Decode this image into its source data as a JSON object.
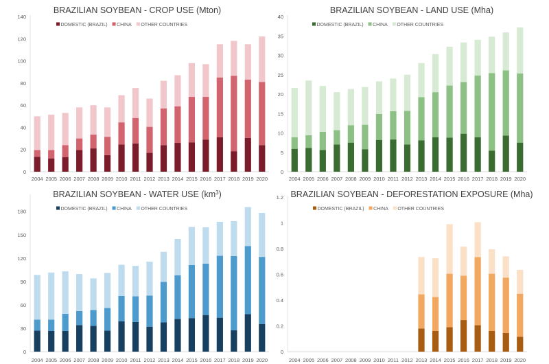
{
  "chart_data": [
    {
      "id": "crop",
      "type": "bar",
      "stacked": true,
      "title": "BRAZILIAN SOYBEAN - CROP USE (Mton)",
      "xlabel": "",
      "ylabel": "",
      "ylim": [
        0,
        140
      ],
      "yticks": [
        0,
        20,
        40,
        60,
        80,
        100,
        120,
        140
      ],
      "ytick_labels": [
        "0",
        "20",
        "40",
        "60",
        "80",
        "100",
        "120",
        "140"
      ],
      "grid": false,
      "legend_position": "top-center",
      "categories": [
        "2004",
        "2005",
        "2006",
        "2007",
        "2008",
        "2009",
        "2010",
        "2011",
        "2012",
        "2013",
        "2014",
        "2015",
        "2016",
        "2017",
        "2018",
        "2019",
        "2020"
      ],
      "series": [
        {
          "name": "DOMESTIC (BRAZIL)",
          "color": "#7B1C2A",
          "values": [
            13.5,
            12,
            13,
            19.5,
            21,
            15,
            24.5,
            25.5,
            17,
            24,
            26,
            26.5,
            29,
            31,
            18.5,
            30.5,
            24
          ]
        },
        {
          "name": "CHINA",
          "color": "#D1646F",
          "values": [
            6,
            7.5,
            11,
            10.5,
            12.5,
            16.5,
            20,
            23,
            23.5,
            33,
            33,
            41,
            38.5,
            54,
            68,
            52.5,
            57
          ]
        },
        {
          "name": "OTHER COUNTRIES",
          "color": "#F1C7CC",
          "values": [
            30.5,
            32,
            29,
            28,
            26.5,
            26.5,
            24.5,
            27,
            25.5,
            25,
            28,
            30.5,
            29.5,
            30,
            31.5,
            32,
            41
          ]
        }
      ]
    },
    {
      "id": "land",
      "type": "bar",
      "stacked": true,
      "title": "BRAZILIAN SOYBEAN - LAND USE (Mha)",
      "xlabel": "",
      "ylabel": "",
      "ylim": [
        0,
        40
      ],
      "yticks": [
        0,
        5,
        10,
        15,
        20,
        25,
        30,
        35,
        40
      ],
      "ytick_labels": [
        "0",
        "5",
        "10",
        "15",
        "20",
        "25",
        "30",
        "35",
        "40"
      ],
      "grid": false,
      "legend_position": "top-center",
      "categories": [
        "2004",
        "2005",
        "2006",
        "2007",
        "2008",
        "2009",
        "2010",
        "2011",
        "2012",
        "2013",
        "2014",
        "2015",
        "2016",
        "2017",
        "2018",
        "2019",
        "2020"
      ],
      "series": [
        {
          "name": "DOMESTIC (BRAZIL)",
          "color": "#3A6B30",
          "values": [
            5.9,
            6.1,
            5.6,
            7.0,
            7.5,
            5.8,
            8.2,
            8.3,
            7.0,
            8.1,
            8.9,
            8.8,
            9.8,
            8.9,
            5.4,
            9.3,
            7.5
          ]
        },
        {
          "name": "CHINA",
          "color": "#8CC084",
          "values": [
            3.0,
            3.3,
            4.7,
            3.7,
            4.5,
            6.3,
            6.7,
            7.3,
            8.7,
            11.1,
            11.6,
            13.4,
            13.3,
            15.9,
            20.0,
            16.8,
            17.8
          ]
        },
        {
          "name": "OTHER COUNTRIES",
          "color": "#D7EAD3",
          "values": [
            12.7,
            14.1,
            11.8,
            9.8,
            9.3,
            9.7,
            8.4,
            8.4,
            9.3,
            8.8,
            9.8,
            10.0,
            10.2,
            9.2,
            9.4,
            9.8,
            11.9
          ]
        }
      ]
    },
    {
      "id": "water",
      "type": "bar",
      "stacked": true,
      "title": "BRAZILIAN SOYBEAN - WATER USE (km",
      "title_sup": "3",
      "title_end": ")",
      "xlabel": "",
      "ylabel": "",
      "ylim": [
        0,
        200
      ],
      "yticks": [
        0,
        30,
        60,
        90,
        120,
        150,
        180
      ],
      "ytick_labels": [
        "0",
        "30",
        "60",
        "90",
        "120",
        "150",
        "180"
      ],
      "grid": false,
      "legend_position": "top-center",
      "categories": [
        "2004",
        "2005",
        "2006",
        "2007",
        "2008",
        "2009",
        "2010",
        "2011",
        "2012",
        "2013",
        "2014",
        "2015",
        "2016",
        "2017",
        "2018",
        "2019",
        "2020"
      ],
      "series": [
        {
          "name": "DOMESTIC (BRAZIL)",
          "color": "#173F5F",
          "values": [
            27,
            26.5,
            26.5,
            34,
            33,
            27,
            39,
            38,
            32,
            37.5,
            42,
            43,
            47,
            43.5,
            27.5,
            48,
            35.5
          ]
        },
        {
          "name": "CHINA",
          "color": "#4D9ACC",
          "values": [
            14,
            14.5,
            22,
            18,
            20.5,
            29,
            32.5,
            33,
            40,
            52,
            56,
            68,
            66,
            79.5,
            95,
            87.5,
            86
          ]
        },
        {
          "name": "OTHER COUNTRIES",
          "color": "#BFDCEF",
          "values": [
            57.5,
            60.5,
            54.5,
            47.5,
            40.5,
            45,
            40,
            39,
            43.5,
            38.5,
            46.5,
            49,
            46.5,
            43.5,
            45,
            50,
            56.5
          ]
        }
      ]
    },
    {
      "id": "deforestation",
      "type": "bar",
      "stacked": true,
      "title": "BRAZILIAN SOYBEAN - DEFORESTATION EXPOSURE (Mha)",
      "xlabel": "",
      "ylabel": "",
      "ylim": [
        0,
        1.2
      ],
      "yticks": [
        0,
        0.2,
        0.4,
        0.6,
        0.8,
        1.0,
        1.2
      ],
      "ytick_labels": [
        "0",
        "0.2",
        "0.4",
        "0.6",
        "0.8",
        "1",
        "1.2"
      ],
      "grid": false,
      "legend_position": "top-center",
      "categories": [
        "2004",
        "2005",
        "2006",
        "2007",
        "2008",
        "2009",
        "2010",
        "2011",
        "2012",
        "2013",
        "2014",
        "2015",
        "2016",
        "2017",
        "2018",
        "2019",
        "2020"
      ],
      "series": [
        {
          "name": "DOMESTIC (BRAZIL)",
          "color": "#A85C12",
          "values": [
            0,
            0,
            0,
            0,
            0,
            0,
            0,
            0,
            0,
            0.18,
            0.16,
            0.19,
            0.245,
            0.205,
            0.16,
            0.145,
            0.115
          ]
        },
        {
          "name": "CHINA",
          "color": "#F2A861",
          "values": [
            0,
            0,
            0,
            0,
            0,
            0,
            0,
            0,
            0,
            0.265,
            0.265,
            0.415,
            0.345,
            0.53,
            0.445,
            0.43,
            0.335
          ]
        },
        {
          "name": "OTHER COUNTRIES",
          "color": "#FBE0C8",
          "values": [
            0,
            0,
            0,
            0,
            0,
            0,
            0,
            0,
            0,
            0.29,
            0.3,
            0.385,
            0.225,
            0.27,
            0.19,
            0.165,
            0.185
          ]
        }
      ]
    }
  ]
}
